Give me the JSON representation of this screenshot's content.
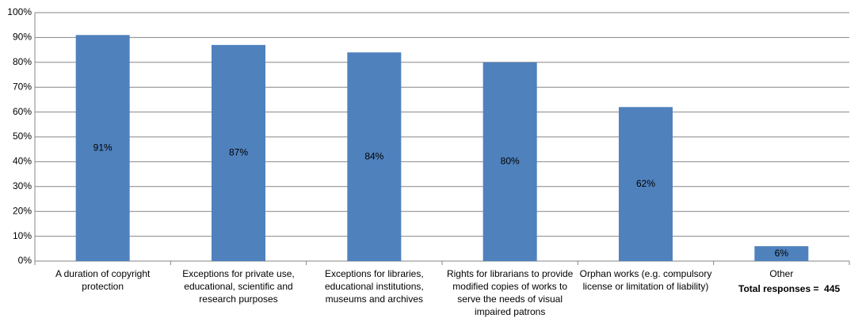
{
  "chart_data": {
    "type": "bar",
    "categories": [
      "A duration of copyright protection",
      "Exceptions for private use, educational, scientific and research purposes",
      "Exceptions for libraries, educational institutions, museums and archives",
      "Rights for librarians to provide modified copies of works to serve the needs of visual impaired patrons",
      "Orphan works (e.g. compulsory license or limitation of liability)",
      "Other"
    ],
    "values": [
      91,
      87,
      84,
      80,
      62,
      6
    ],
    "value_labels": [
      "91%",
      "87%",
      "84%",
      "80%",
      "62%",
      "6%"
    ],
    "color": "#4f81bd",
    "ylim": [
      0,
      100
    ],
    "yticks": [
      {
        "value": 0,
        "label": "0%"
      },
      {
        "value": 10,
        "label": "10%"
      },
      {
        "value": 20,
        "label": "20%"
      },
      {
        "value": 30,
        "label": "30%"
      },
      {
        "value": 40,
        "label": "40%"
      },
      {
        "value": 50,
        "label": "50%"
      },
      {
        "value": 60,
        "label": "60%"
      },
      {
        "value": 70,
        "label": "70%"
      },
      {
        "value": 80,
        "label": "80%"
      },
      {
        "value": 90,
        "label": "90%"
      },
      {
        "value": 100,
        "label": "100%"
      }
    ],
    "grid": true,
    "annotation": "Total responses =  445"
  }
}
